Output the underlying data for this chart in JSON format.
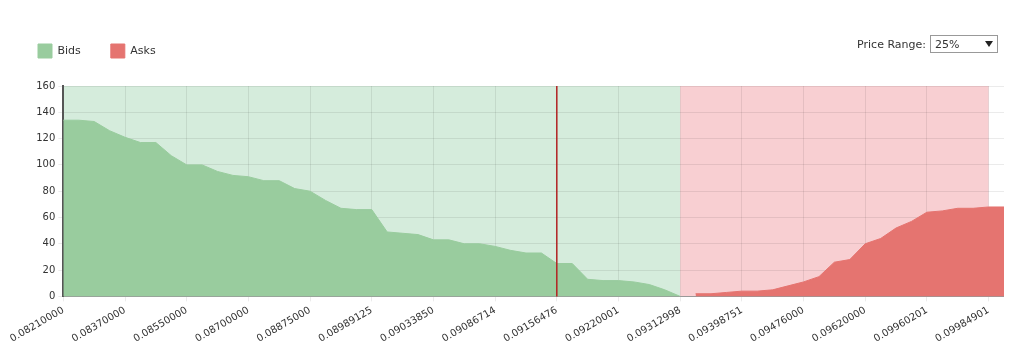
{
  "chart_data": {
    "type": "area",
    "categories": [
      "0.08210000",
      null,
      null,
      null,
      "0.08370000",
      null,
      null,
      null,
      "0.08550000",
      null,
      null,
      null,
      "0.08700000",
      null,
      null,
      null,
      "0.08875000",
      null,
      null,
      null,
      "0.08989125",
      null,
      null,
      null,
      "0.09033850",
      null,
      null,
      null,
      "0.09086714",
      null,
      null,
      null,
      "0.09156476",
      null,
      null,
      null,
      "0.09220001",
      null,
      null,
      null,
      "0.09312998",
      null,
      null,
      null,
      "0.09398751",
      null,
      null,
      null,
      "0.09476000",
      null,
      null,
      null,
      "0.09620000",
      null,
      null,
      null,
      "0.09960201",
      null,
      null,
      null,
      "0.09984901",
      null
    ],
    "series": [
      {
        "name": "Bids",
        "color": "#99cc9e",
        "values": [
          134,
          134,
          133,
          126,
          121,
          117,
          117,
          107,
          100,
          100,
          95,
          92,
          91,
          88,
          88,
          82,
          80,
          73,
          67,
          66,
          66,
          49,
          48,
          47,
          43,
          43,
          40,
          40,
          38,
          35,
          33,
          33,
          25,
          25,
          13,
          12,
          12,
          11,
          9,
          5,
          0,
          null,
          null,
          null,
          null,
          null,
          null,
          null,
          null,
          null,
          null,
          null,
          null,
          null,
          null,
          null,
          null,
          null,
          null,
          null,
          null,
          null
        ]
      },
      {
        "name": "Asks",
        "color": "#e57470",
        "values": [
          null,
          null,
          null,
          null,
          null,
          null,
          null,
          null,
          null,
          null,
          null,
          null,
          null,
          null,
          null,
          null,
          null,
          null,
          null,
          null,
          null,
          null,
          null,
          null,
          null,
          null,
          null,
          null,
          null,
          null,
          null,
          null,
          null,
          null,
          null,
          null,
          null,
          null,
          null,
          null,
          null,
          2,
          2,
          3,
          4,
          4,
          5,
          8,
          11,
          15,
          26,
          28,
          40,
          44,
          52,
          57,
          64,
          65,
          67,
          67,
          68,
          68
        ]
      }
    ],
    "ylim": [
      0,
      160
    ],
    "yticks": [
      0,
      20,
      40,
      60,
      80,
      100,
      120,
      140,
      160
    ],
    "bands": [
      {
        "axis": "x",
        "from": "0.08210000",
        "to": "0.09312998",
        "color": "#d5ecdc"
      },
      {
        "axis": "x",
        "from": "0.09312998",
        "to": "0.09984901",
        "color": "#f8cfd2"
      }
    ],
    "ref_lines": [
      {
        "axis": "x",
        "value": "0.09156476",
        "color": "#b22222"
      }
    ],
    "annotations": [
      "Price Range:",
      "25%"
    ],
    "grid": true,
    "legend": "top left"
  }
}
